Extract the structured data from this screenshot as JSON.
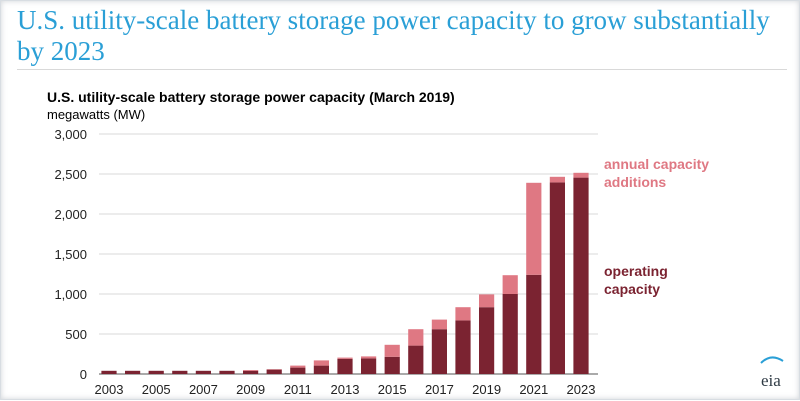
{
  "headline": "U.S. utility-scale battery storage power capacity to grow substantially by 2023",
  "brand": "eia",
  "colors": {
    "headline": "#2a9fd6",
    "operating": "#7b2331",
    "additions": "#df7883",
    "grid": "#d9d9d9"
  },
  "chart_data": {
    "type": "bar",
    "stacked": true,
    "title": "U.S. utility-scale battery storage power capacity (March 2019)",
    "subtitle": "megawatts (MW)",
    "ylim": [
      0,
      3000
    ],
    "yticks": [
      0,
      500,
      1000,
      1500,
      2000,
      2500,
      3000
    ],
    "ytick_labels": [
      "0",
      "500",
      "1,000",
      "1,500",
      "2,000",
      "2,500",
      "3,000"
    ],
    "xtick_labels": [
      "2003",
      "2005",
      "2007",
      "2009",
      "2011",
      "2013",
      "2015",
      "2017",
      "2019",
      "2021",
      "2023"
    ],
    "grid": true,
    "legend_placement": "right",
    "categories": [
      "2003",
      "2004",
      "2005",
      "2006",
      "2007",
      "2008",
      "2009",
      "2010",
      "2011",
      "2012",
      "2013",
      "2014",
      "2015",
      "2016",
      "2017",
      "2018",
      "2019",
      "2020",
      "2021",
      "2022",
      "2023"
    ],
    "series": [
      {
        "name": "operating capacity",
        "values": [
          40,
          40,
          40,
          40,
          40,
          40,
          40,
          55,
          80,
          105,
          190,
          195,
          215,
          355,
          560,
          670,
          835,
          1000,
          1240,
          2395,
          2455
        ]
      },
      {
        "name": "annual capacity additions",
        "values": [
          0,
          0,
          0,
          0,
          0,
          0,
          10,
          5,
          25,
          65,
          15,
          25,
          150,
          205,
          120,
          165,
          160,
          235,
          1150,
          70,
          60
        ]
      }
    ]
  }
}
